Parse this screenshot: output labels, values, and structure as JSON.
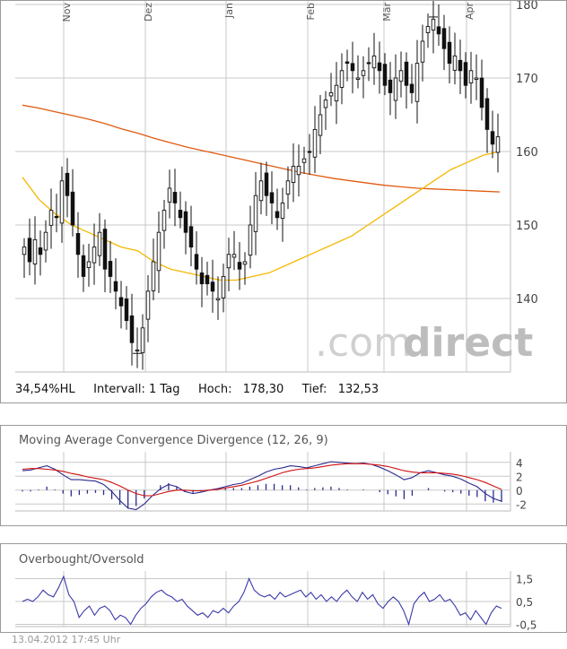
{
  "stats": {
    "hl": "34,54%HL",
    "interval": "Intervall: 1 Tag",
    "high_label": "Hoch:",
    "high_value": "178,30",
    "low_label": "Tief:",
    "low_value": "132,53"
  },
  "watermark": {
    "dot_com": ".com",
    "direct": "direct"
  },
  "macd_title": "Moving Average Convergence Divergence (12, 26, 9)",
  "obos_title": "Overbought/Oversold",
  "timestamp": "13.04.2012 17:45 Uhr",
  "colors": {
    "candle": "#111111",
    "ma_short": "#f5b800",
    "ma_long": "#e05a10",
    "macd": "#2a2a90",
    "signal": "#d01010",
    "osc": "#3a3aa8",
    "grid": "#c8c8c8"
  },
  "chart_data": [
    {
      "type": "candlestick",
      "x_ticks": [
        "Nov",
        "Dez",
        "Jan",
        "Feb",
        "Mär",
        "Apr"
      ],
      "ylim": [
        130,
        180
      ],
      "y_ticks": [
        140,
        150,
        160,
        170,
        180
      ],
      "high": 178.3,
      "low": 132.53,
      "close": [
        147,
        145,
        148,
        146,
        149,
        152,
        151,
        156,
        154,
        150,
        146,
        143,
        145,
        147,
        149,
        144,
        143,
        141,
        139,
        137,
        134,
        133,
        136,
        141,
        145,
        149,
        152,
        155,
        153,
        151,
        149,
        147,
        144,
        142,
        142,
        141,
        140,
        143,
        146,
        146,
        144,
        145,
        150,
        154,
        156,
        154,
        153,
        151,
        153,
        156,
        158,
        158,
        159,
        160,
        163,
        165,
        167,
        168,
        169,
        171,
        172,
        171,
        170,
        171,
        172,
        173,
        171,
        169,
        168,
        170,
        171,
        169,
        168,
        172,
        175,
        177,
        178,
        176,
        174,
        172,
        173,
        171,
        169,
        171,
        170,
        166,
        163,
        161,
        162
      ],
      "ma_short": [
        156.5,
        153.5,
        151.5,
        150,
        149,
        148,
        147,
        146.5,
        145,
        144,
        143.5,
        143,
        142.5,
        142.5,
        143,
        143.5,
        144.5,
        145.5,
        146.5,
        147.5,
        148.5,
        150,
        151.5,
        153,
        154.5,
        156,
        157.5,
        158.5,
        159.5,
        160
      ],
      "ma_long": [
        166.3,
        165.9,
        165.4,
        164.9,
        164.4,
        163.8,
        163.1,
        162.5,
        161.8,
        161.2,
        160.6,
        160.1,
        159.6,
        159.1,
        158.6,
        158.1,
        157.6,
        157.1,
        156.7,
        156.3,
        156,
        155.7,
        155.4,
        155.2,
        155,
        154.9,
        154.8,
        154.7,
        154.6,
        154.5
      ]
    },
    {
      "type": "line",
      "title": "Moving Average Convergence Divergence (12, 26, 9)",
      "ylim": [
        -3,
        5
      ],
      "y_ticks": [
        4,
        2,
        0,
        -2
      ],
      "series": [
        {
          "values": [
            2.8,
            2.9,
            3.2,
            3.5,
            3,
            2.2,
            1.5,
            1.5,
            1.4,
            1.3,
            0.8,
            -0.2,
            -1.5,
            -2.6,
            -2.8,
            -2,
            -0.8,
            0.2,
            0.8,
            0.5,
            -0.2,
            -0.5,
            -0.3,
            0,
            0.2,
            0.5,
            0.8,
            1,
            1.5,
            2,
            2.6,
            3,
            3.2,
            3.5,
            3.4,
            3.2,
            3.5,
            3.8,
            4.1,
            4,
            3.9,
            3.8,
            3.9,
            3.7,
            3.3,
            2.8,
            2.2,
            1.5,
            1.8,
            2.5,
            2.8,
            2.5,
            2.2,
            2,
            1.6,
            1,
            0.5,
            -0.5,
            -1.2,
            -1.6
          ]
        },
        {
          "values": [
            3,
            3.1,
            3.1,
            3,
            2.9,
            2.7,
            2.4,
            2.2,
            1.9,
            1.7,
            1.5,
            1.1,
            0.6,
            0,
            -0.5,
            -0.8,
            -0.8,
            -0.5,
            -0.2,
            0,
            0,
            -0.1,
            -0.1,
            0,
            0.1,
            0.3,
            0.5,
            0.7,
            1,
            1.3,
            1.7,
            2.1,
            2.5,
            2.8,
            3,
            3.1,
            3.2,
            3.4,
            3.6,
            3.7,
            3.8,
            3.8,
            3.8,
            3.7,
            3.6,
            3.4,
            3.1,
            2.8,
            2.6,
            2.5,
            2.5,
            2.5,
            2.4,
            2.3,
            2.1,
            1.8,
            1.5,
            1.1,
            0.6,
            0.1
          ]
        }
      ]
    },
    {
      "type": "line",
      "title": "Overbought/Oversold",
      "ylim": [
        -0.6,
        1.6
      ],
      "y_ticks": [
        "1,5",
        "0,5",
        "-0,5"
      ],
      "series": [
        {
          "values": [
            0.5,
            0.6,
            0.5,
            0.7,
            1,
            0.8,
            0.7,
            1.1,
            1.6,
            0.8,
            0.5,
            -0.2,
            0.1,
            0.3,
            -0.1,
            0.2,
            0.3,
            0.1,
            -0.3,
            -0.1,
            -0.2,
            -0.5,
            -0.1,
            0.2,
            0.4,
            0.7,
            0.9,
            1,
            0.8,
            0.7,
            0.5,
            0.6,
            0.3,
            0.1,
            -0.1,
            0,
            -0.2,
            0.1,
            0,
            0.2,
            0,
            0.3,
            0.5,
            0.9,
            1.5,
            1,
            0.8,
            0.7,
            0.8,
            0.6,
            0.9,
            0.7,
            0.8,
            0.9,
            1,
            0.7,
            0.9,
            0.6,
            0.8,
            0.5,
            0.7,
            0.5,
            0.8,
            1,
            0.7,
            0.5,
            0.9,
            0.6,
            0.8,
            0.4,
            0.2,
            0.5,
            0.7,
            0.5,
            0.1,
            -0.5,
            0.4,
            0.7,
            0.9,
            0.5,
            0.6,
            0.8,
            0.5,
            0.6,
            0.3,
            -0.1,
            0,
            -0.3,
            0.1,
            -0.2,
            -0.5,
            0,
            0.3,
            0.2
          ]
        }
      ]
    }
  ]
}
